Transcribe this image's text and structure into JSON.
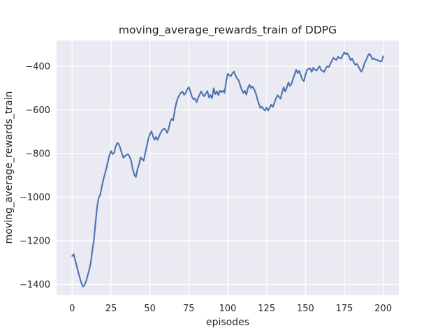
{
  "chart_data": {
    "type": "line",
    "title": "moving_average_rewards_train of DDPG",
    "xlabel": "episodes",
    "ylabel": "moving_average_rewards_train",
    "x_ticks": [
      0,
      25,
      50,
      75,
      100,
      125,
      150,
      175,
      200
    ],
    "y_ticks": [
      -400,
      -600,
      -800,
      -1000,
      -1200,
      -1400
    ],
    "xlim": [
      -10,
      210
    ],
    "ylim": [
      -1450,
      -282
    ],
    "grid": true,
    "legend": false,
    "style": {
      "plot_bg": "#eaeaf2",
      "grid_color": "#ffffff",
      "line_color": "#4c72b0",
      "text_color": "#262626",
      "line_width": 2.1,
      "grid_width": 1.3
    },
    "series": [
      {
        "name": "moving_average_rewards_train",
        "x_start": 0,
        "x_step": 1,
        "values": [
          -1270,
          -1262,
          -1290,
          -1318,
          -1346,
          -1372,
          -1395,
          -1410,
          -1403,
          -1386,
          -1360,
          -1333,
          -1300,
          -1245,
          -1195,
          -1120,
          -1050,
          -1005,
          -990,
          -955,
          -922,
          -896,
          -868,
          -838,
          -808,
          -789,
          -803,
          -797,
          -768,
          -752,
          -757,
          -776,
          -800,
          -820,
          -812,
          -806,
          -803,
          -817,
          -835,
          -872,
          -898,
          -908,
          -872,
          -852,
          -818,
          -827,
          -833,
          -798,
          -766,
          -733,
          -712,
          -698,
          -722,
          -737,
          -724,
          -738,
          -720,
          -704,
          -693,
          -686,
          -690,
          -706,
          -688,
          -655,
          -641,
          -648,
          -600,
          -568,
          -545,
          -532,
          -521,
          -517,
          -531,
          -523,
          -506,
          -496,
          -515,
          -540,
          -552,
          -548,
          -565,
          -545,
          -530,
          -515,
          -531,
          -538,
          -524,
          -514,
          -544,
          -533,
          -547,
          -501,
          -528,
          -515,
          -533,
          -512,
          -519,
          -512,
          -522,
          -470,
          -435,
          -441,
          -446,
          -433,
          -425,
          -441,
          -456,
          -464,
          -486,
          -507,
          -523,
          -512,
          -531,
          -500,
          -485,
          -501,
          -493,
          -506,
          -523,
          -549,
          -571,
          -592,
          -585,
          -597,
          -603,
          -589,
          -603,
          -591,
          -576,
          -587,
          -569,
          -549,
          -533,
          -541,
          -549,
          -520,
          -496,
          -517,
          -499,
          -474,
          -490,
          -481,
          -459,
          -438,
          -416,
          -432,
          -421,
          -441,
          -461,
          -469,
          -439,
          -416,
          -412,
          -410,
          -426,
          -407,
          -415,
          -421,
          -410,
          -400,
          -418,
          -421,
          -426,
          -410,
          -400,
          -404,
          -389,
          -374,
          -362,
          -368,
          -371,
          -357,
          -362,
          -365,
          -349,
          -336,
          -346,
          -341,
          -355,
          -373,
          -365,
          -381,
          -394,
          -389,
          -401,
          -415,
          -425,
          -409,
          -385,
          -372,
          -354,
          -343,
          -351,
          -368,
          -364,
          -370,
          -371,
          -374,
          -379,
          -377,
          -354
        ]
      }
    ]
  }
}
